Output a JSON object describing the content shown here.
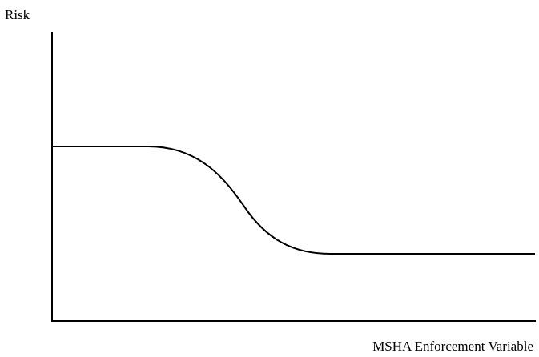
{
  "axes": {
    "y_label": "Risk",
    "x_label": "MSHA Enforcement Variable"
  }
}
